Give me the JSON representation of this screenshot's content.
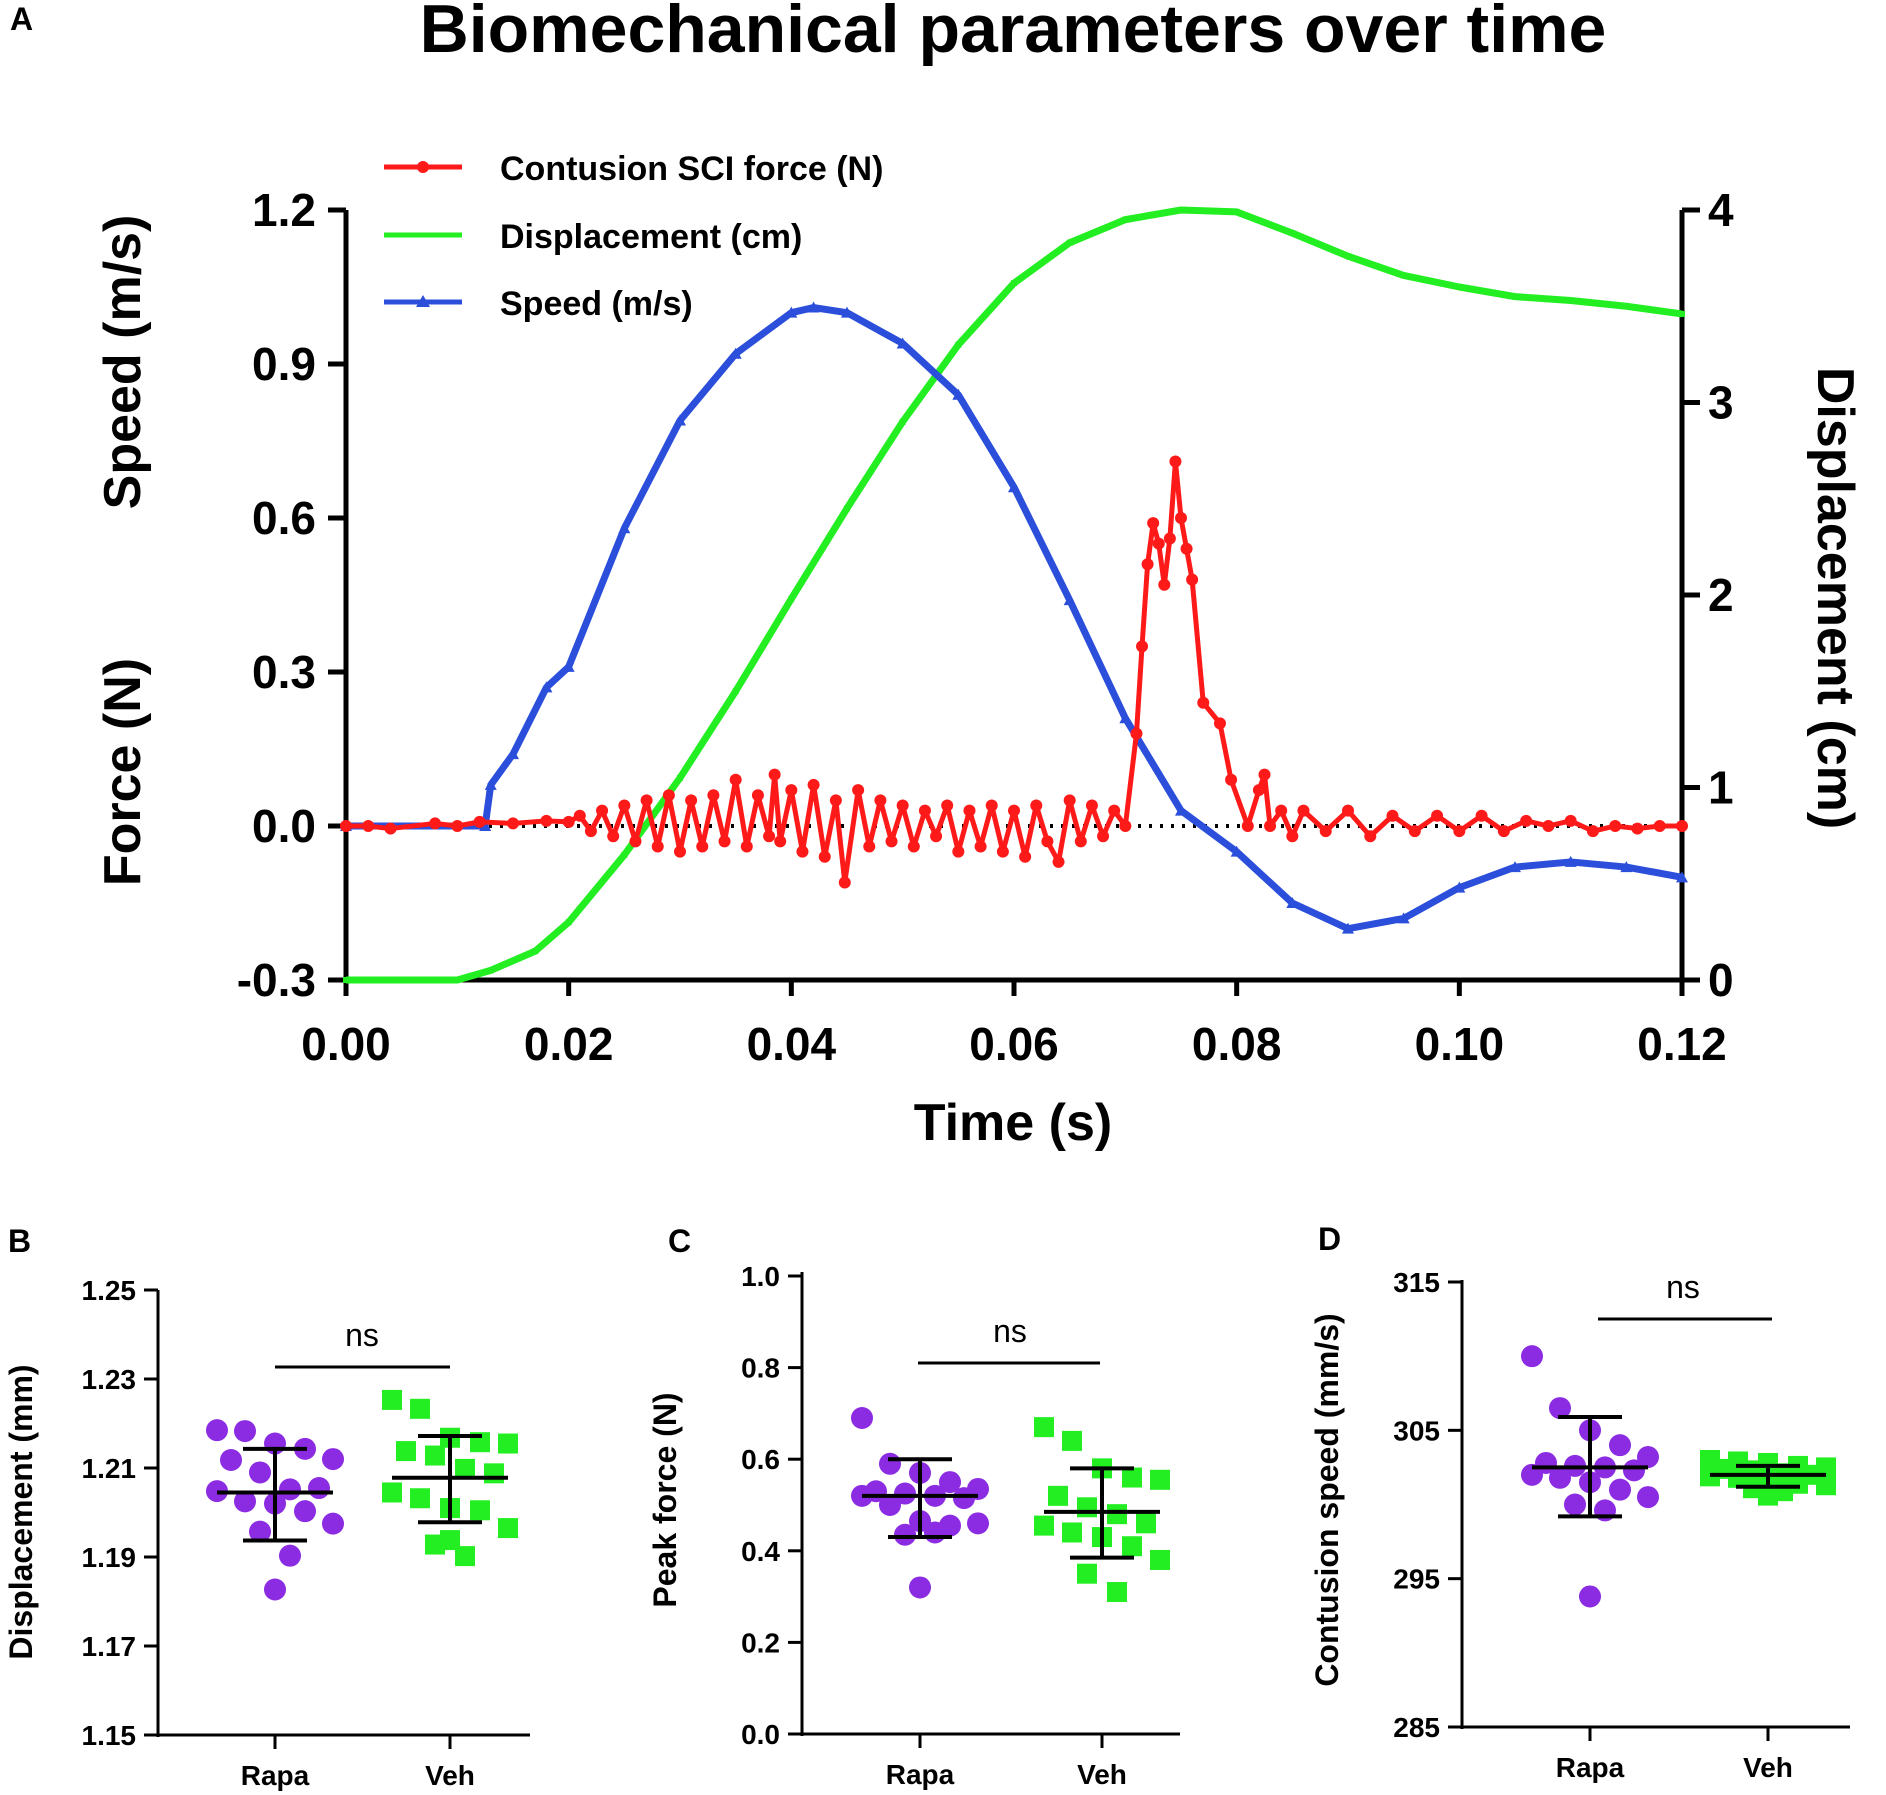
{
  "chart_data": [
    {
      "panel": "A",
      "type": "line",
      "title": "Biomechanical parameters over time",
      "xlabel": "Time (s)",
      "ylabel_left_top": "Speed (m/s)",
      "ylabel_left_bottom": "Force (N)",
      "ylabel_right": "Displacement (cm)",
      "xlim": [
        0,
        0.12
      ],
      "ylim_left": [
        -0.3,
        1.2
      ],
      "ylim_right": [
        0,
        4
      ],
      "x_ticks": [
        "0.00",
        "0.02",
        "0.04",
        "0.06",
        "0.08",
        "0.10",
        "0.12"
      ],
      "y_left_ticks": [
        "-0.3",
        "0.0",
        "0.3",
        "0.6",
        "0.9",
        "1.2"
      ],
      "y_right_ticks": [
        "0",
        "1",
        "2",
        "3",
        "4"
      ],
      "legend_position": "top-left",
      "series": [
        {
          "name": "Contusion SCI force (N)",
          "color": "#ff1a1a",
          "marker": "circle",
          "axis": "left",
          "points": [
            [
              0,
              0.0
            ],
            [
              0.002,
              0.0
            ],
            [
              0.004,
              -0.005
            ],
            [
              0.008,
              0.005
            ],
            [
              0.01,
              0.0
            ],
            [
              0.012,
              0.008
            ],
            [
              0.015,
              0.005
            ],
            [
              0.018,
              0.01
            ],
            [
              0.02,
              0.008
            ],
            [
              0.021,
              0.02
            ],
            [
              0.022,
              -0.01
            ],
            [
              0.023,
              0.03
            ],
            [
              0.024,
              -0.02
            ],
            [
              0.025,
              0.04
            ],
            [
              0.026,
              -0.03
            ],
            [
              0.027,
              0.05
            ],
            [
              0.028,
              -0.04
            ],
            [
              0.029,
              0.06
            ],
            [
              0.03,
              -0.05
            ],
            [
              0.031,
              0.05
            ],
            [
              0.032,
              -0.04
            ],
            [
              0.033,
              0.06
            ],
            [
              0.034,
              -0.03
            ],
            [
              0.035,
              0.09
            ],
            [
              0.036,
              -0.04
            ],
            [
              0.037,
              0.06
            ],
            [
              0.038,
              -0.02
            ],
            [
              0.0385,
              0.1
            ],
            [
              0.039,
              -0.03
            ],
            [
              0.04,
              0.07
            ],
            [
              0.041,
              -0.05
            ],
            [
              0.042,
              0.08
            ],
            [
              0.043,
              -0.06
            ],
            [
              0.044,
              0.05
            ],
            [
              0.0448,
              -0.11
            ],
            [
              0.046,
              0.07
            ],
            [
              0.047,
              -0.04
            ],
            [
              0.048,
              0.05
            ],
            [
              0.049,
              -0.03
            ],
            [
              0.05,
              0.04
            ],
            [
              0.051,
              -0.04
            ],
            [
              0.052,
              0.03
            ],
            [
              0.053,
              -0.02
            ],
            [
              0.054,
              0.04
            ],
            [
              0.055,
              -0.05
            ],
            [
              0.056,
              0.03
            ],
            [
              0.057,
              -0.04
            ],
            [
              0.058,
              0.04
            ],
            [
              0.059,
              -0.05
            ],
            [
              0.06,
              0.03
            ],
            [
              0.061,
              -0.06
            ],
            [
              0.062,
              0.04
            ],
            [
              0.063,
              -0.03
            ],
            [
              0.064,
              -0.07
            ],
            [
              0.065,
              0.05
            ],
            [
              0.066,
              -0.03
            ],
            [
              0.067,
              0.04
            ],
            [
              0.068,
              -0.02
            ],
            [
              0.069,
              0.03
            ],
            [
              0.07,
              0.0
            ],
            [
              0.071,
              0.18
            ],
            [
              0.0715,
              0.35
            ],
            [
              0.072,
              0.51
            ],
            [
              0.0725,
              0.59
            ],
            [
              0.073,
              0.55
            ],
            [
              0.0735,
              0.47
            ],
            [
              0.074,
              0.56
            ],
            [
              0.0745,
              0.71
            ],
            [
              0.075,
              0.6
            ],
            [
              0.0755,
              0.54
            ],
            [
              0.076,
              0.48
            ],
            [
              0.077,
              0.24
            ],
            [
              0.0785,
              0.2
            ],
            [
              0.0795,
              0.09
            ],
            [
              0.081,
              0.0
            ],
            [
              0.082,
              0.07
            ],
            [
              0.0825,
              0.1
            ],
            [
              0.083,
              0.0
            ],
            [
              0.084,
              0.03
            ],
            [
              0.085,
              -0.02
            ],
            [
              0.086,
              0.03
            ],
            [
              0.088,
              -0.01
            ],
            [
              0.09,
              0.03
            ],
            [
              0.092,
              -0.02
            ],
            [
              0.094,
              0.02
            ],
            [
              0.096,
              -0.01
            ],
            [
              0.098,
              0.02
            ],
            [
              0.1,
              -0.01
            ],
            [
              0.102,
              0.02
            ],
            [
              0.104,
              -0.01
            ],
            [
              0.106,
              0.01
            ],
            [
              0.108,
              0.0
            ],
            [
              0.11,
              0.01
            ],
            [
              0.112,
              -0.01
            ],
            [
              0.114,
              0.0
            ],
            [
              0.116,
              -0.005
            ],
            [
              0.118,
              0.0
            ],
            [
              0.12,
              0.0
            ]
          ]
        },
        {
          "name": "Displacement (cm)",
          "color": "#22ee22",
          "marker": "plus",
          "axis": "right",
          "points": [
            [
              0,
              0.0
            ],
            [
              0.01,
              0.0
            ],
            [
              0.013,
              0.05
            ],
            [
              0.017,
              0.15
            ],
            [
              0.02,
              0.3
            ],
            [
              0.025,
              0.65
            ],
            [
              0.03,
              1.05
            ],
            [
              0.035,
              1.5
            ],
            [
              0.04,
              1.98
            ],
            [
              0.045,
              2.45
            ],
            [
              0.05,
              2.9
            ],
            [
              0.055,
              3.3
            ],
            [
              0.06,
              3.62
            ],
            [
              0.065,
              3.83
            ],
            [
              0.07,
              3.95
            ],
            [
              0.075,
              4.0
            ],
            [
              0.08,
              3.99
            ],
            [
              0.085,
              3.88
            ],
            [
              0.09,
              3.76
            ],
            [
              0.095,
              3.66
            ],
            [
              0.1,
              3.6
            ],
            [
              0.105,
              3.55
            ],
            [
              0.11,
              3.53
            ],
            [
              0.115,
              3.5
            ],
            [
              0.12,
              3.46
            ]
          ]
        },
        {
          "name": "Speed (m/s)",
          "color": "#2b4fdb",
          "marker": "triangle",
          "axis": "left",
          "points": [
            [
              0,
              0.0
            ],
            [
              0.0125,
              0.0
            ],
            [
              0.013,
              0.08
            ],
            [
              0.015,
              0.14
            ],
            [
              0.018,
              0.27
            ],
            [
              0.02,
              0.31
            ],
            [
              0.025,
              0.58
            ],
            [
              0.03,
              0.79
            ],
            [
              0.035,
              0.92
            ],
            [
              0.04,
              1.0
            ],
            [
              0.042,
              1.01
            ],
            [
              0.045,
              1.0
            ],
            [
              0.05,
              0.94
            ],
            [
              0.055,
              0.84
            ],
            [
              0.06,
              0.66
            ],
            [
              0.065,
              0.44
            ],
            [
              0.07,
              0.21
            ],
            [
              0.075,
              0.03
            ],
            [
              0.08,
              -0.05
            ],
            [
              0.085,
              -0.15
            ],
            [
              0.09,
              -0.2
            ],
            [
              0.095,
              -0.18
            ],
            [
              0.1,
              -0.12
            ],
            [
              0.105,
              -0.08
            ],
            [
              0.11,
              -0.07
            ],
            [
              0.115,
              -0.08
            ],
            [
              0.12,
              -0.1
            ]
          ]
        }
      ],
      "zero_line": "dotted"
    },
    {
      "panel": "B",
      "type": "scatter",
      "ylabel": "Displacement (mm)",
      "categories": [
        "Rapa",
        "Veh"
      ],
      "ylim": [
        1.15,
        1.25
      ],
      "y_ticks": [
        "1.15",
        "1.17",
        "1.19",
        "1.21",
        "1.23",
        "1.25"
      ],
      "annotation": "ns",
      "series": [
        {
          "name": "Rapa",
          "color": "#8b2be2",
          "marker": "circle",
          "mean": 1.2045,
          "sd_low": 1.1937,
          "sd_high": 1.2143,
          "values": [
            1.2185,
            1.2183,
            1.2155,
            1.2143,
            1.212,
            1.2118,
            1.209,
            1.2052,
            1.2055,
            1.2048,
            1.2025,
            1.202,
            1.2003,
            1.1975,
            1.1957,
            1.1903,
            1.1827
          ]
        },
        {
          "name": "Veh",
          "color": "#22ee22",
          "marker": "square",
          "mean": 1.2078,
          "sd_low": 1.1978,
          "sd_high": 1.2172,
          "values": [
            1.2253,
            1.2233,
            1.2168,
            1.2158,
            1.2155,
            1.2138,
            1.2128,
            1.2098,
            1.2088,
            1.2045,
            1.2032,
            1.201,
            1.2005,
            1.1965,
            1.1928,
            1.1902,
            1.1938
          ]
        }
      ]
    },
    {
      "panel": "C",
      "type": "scatter",
      "ylabel": "Peak force (N)",
      "categories": [
        "Rapa",
        "Veh"
      ],
      "ylim": [
        0.0,
        1.0
      ],
      "y_ticks": [
        "0.0",
        "0.2",
        "0.4",
        "0.6",
        "0.8",
        "1.0"
      ],
      "annotation": "ns",
      "series": [
        {
          "name": "Rapa",
          "color": "#8b2be2",
          "marker": "circle",
          "mean": 0.52,
          "sd_low": 0.43,
          "sd_high": 0.6,
          "values": [
            0.69,
            0.59,
            0.57,
            0.55,
            0.535,
            0.53,
            0.525,
            0.52,
            0.515,
            0.52,
            0.5,
            0.465,
            0.455,
            0.46,
            0.435,
            0.44,
            0.32
          ]
        },
        {
          "name": "Veh",
          "color": "#22ee22",
          "marker": "square",
          "mean": 0.485,
          "sd_low": 0.385,
          "sd_high": 0.58,
          "values": [
            0.67,
            0.64,
            0.58,
            0.56,
            0.555,
            0.52,
            0.495,
            0.48,
            0.46,
            0.455,
            0.44,
            0.43,
            0.41,
            0.38,
            0.35,
            0.31
          ]
        }
      ]
    },
    {
      "panel": "D",
      "type": "scatter",
      "ylabel": "Contusion speed (mm/s)",
      "categories": [
        "Rapa",
        "Veh"
      ],
      "ylim": [
        285,
        315
      ],
      "y_ticks": [
        "285",
        "295",
        "305",
        "315"
      ],
      "annotation": "ns",
      "series": [
        {
          "name": "Rapa",
          "color": "#8b2be2",
          "marker": "circle",
          "mean": 302.5,
          "sd_low": 299.2,
          "sd_high": 305.9,
          "values": [
            310.0,
            306.5,
            305.0,
            304.0,
            303.2,
            302.8,
            302.6,
            302.5,
            302.3,
            302.0,
            301.8,
            301.5,
            301.0,
            300.5,
            300.0,
            299.6,
            293.8
          ]
        },
        {
          "name": "Veh",
          "color": "#22ee22",
          "marker": "square",
          "mean": 302.0,
          "sd_low": 301.2,
          "sd_high": 302.6,
          "values": [
            303.0,
            302.9,
            302.8,
            302.6,
            302.5,
            302.4,
            302.3,
            302.1,
            302.0,
            301.9,
            301.8,
            301.6,
            301.4,
            301.3,
            301.1,
            300.9,
            300.6
          ]
        }
      ]
    }
  ],
  "panel_labels": [
    "A",
    "B",
    "C",
    "D"
  ]
}
